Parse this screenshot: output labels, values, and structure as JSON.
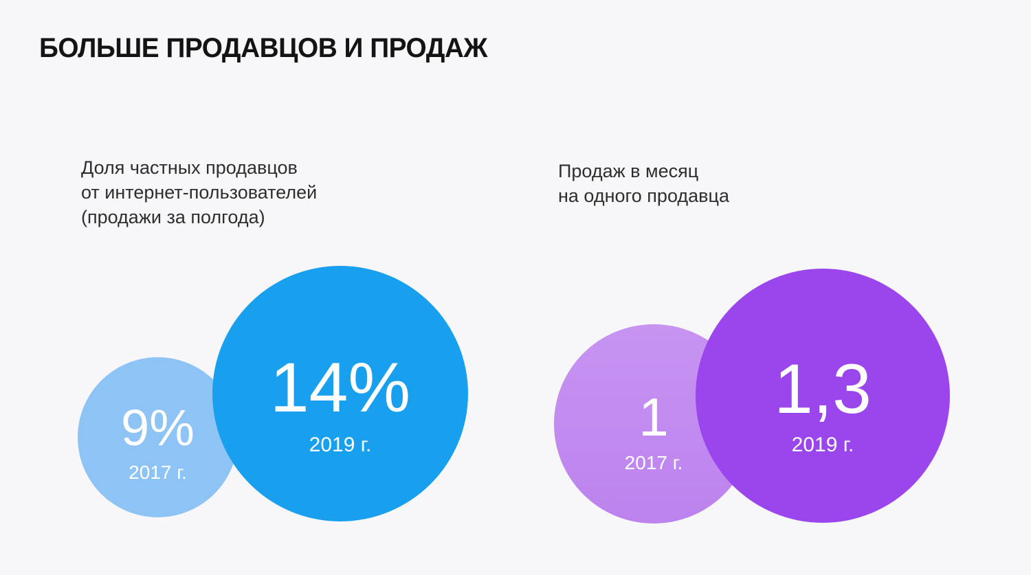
{
  "title": "БОЛЬШЕ ПРОДАВЦОВ И ПРОДАЖ",
  "colors": {
    "background": "#f7f7f9",
    "blue_2017": "#8ec3f5",
    "blue_2019": "#18a0ee",
    "purple_2017": "#c18af0",
    "purple_2019": "#9b46ec",
    "bubble_text": "#ffffff",
    "title_text": "#141414",
    "label_text": "#2e2e2e"
  },
  "chart_data": [
    {
      "type": "bubble",
      "title": "Доля частных продавцов от интернет-пользователей (продажи за полгода)",
      "title_lines": [
        "Доля частных продавцов",
        "от интернет-пользователей",
        "(продажи за полгода)"
      ],
      "categories": [
        "2017 г.",
        "2019 г."
      ],
      "values": [
        9,
        14
      ],
      "unit": "%",
      "series": [
        {
          "label": "2017 г.",
          "value": "9%",
          "numeric": 9,
          "color": "#8ec3f5"
        },
        {
          "label": "2019 г.",
          "value": "14%",
          "numeric": 14,
          "color": "#18a0ee"
        }
      ]
    },
    {
      "type": "bubble",
      "title": "Продаж в месяц на одного продавца",
      "title_lines": [
        "Продаж в месяц",
        "на одного продавца"
      ],
      "categories": [
        "2017 г.",
        "2019 г."
      ],
      "values": [
        1,
        1.3
      ],
      "unit": "",
      "series": [
        {
          "label": "2017 г.",
          "value": "1",
          "numeric": 1,
          "color": "#c18af0"
        },
        {
          "label": "2019 г.",
          "value": "1,3",
          "numeric": 1.3,
          "color": "#9b46ec"
        }
      ]
    }
  ]
}
